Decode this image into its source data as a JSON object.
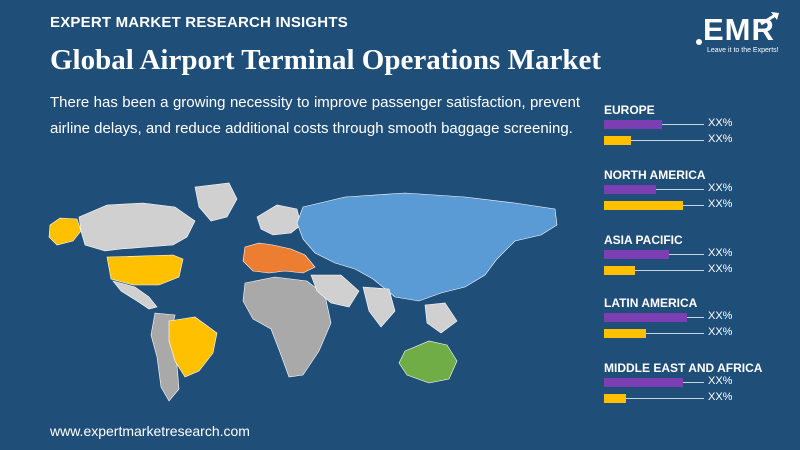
{
  "header": {
    "kicker": "EXPERT MARKET RESEARCH INSIGHTS",
    "title": "Global Airport Terminal Operations Market",
    "description": "There has been a growing necessity to improve passenger satisfaction, prevent airline delays, and reduce additional costs through smooth baggage screening."
  },
  "logo": {
    "text": "EMR",
    "tagline": "Leave it to the Experts!"
  },
  "regions": [
    {
      "name": "EUROPE",
      "value_a": "XX%",
      "value_b": "XX%",
      "bar_a": 0.58,
      "bar_b": 0.27
    },
    {
      "name": "NORTH AMERICA",
      "value_a": "XX%",
      "value_b": "XX%",
      "bar_a": 0.52,
      "bar_b": 0.79
    },
    {
      "name": "ASIA PACIFIC",
      "value_a": "XX%",
      "value_b": "XX%",
      "bar_a": 0.65,
      "bar_b": 0.31
    },
    {
      "name": "LATIN AMERICA",
      "value_a": "XX%",
      "value_b": "XX%",
      "bar_a": 0.83,
      "bar_b": 0.42
    },
    {
      "name": "MIDDLE EAST AND AFRICA",
      "value_a": "XX%",
      "value_b": "XX%",
      "bar_a": 0.79,
      "bar_b": 0.22
    }
  ],
  "colors": {
    "background": "#1f4e79",
    "bar_a": "#7b3fb3",
    "bar_b": "#ffc000",
    "north_america": "#ffc000",
    "latin_america": "#ffc000",
    "europe": "#ed7d31",
    "asia_pacific": "#5b9bd5",
    "australia": "#70ad47",
    "other_land": "#d0d0d0"
  },
  "footer": {
    "url": "www.expertmarketresearch.com"
  }
}
